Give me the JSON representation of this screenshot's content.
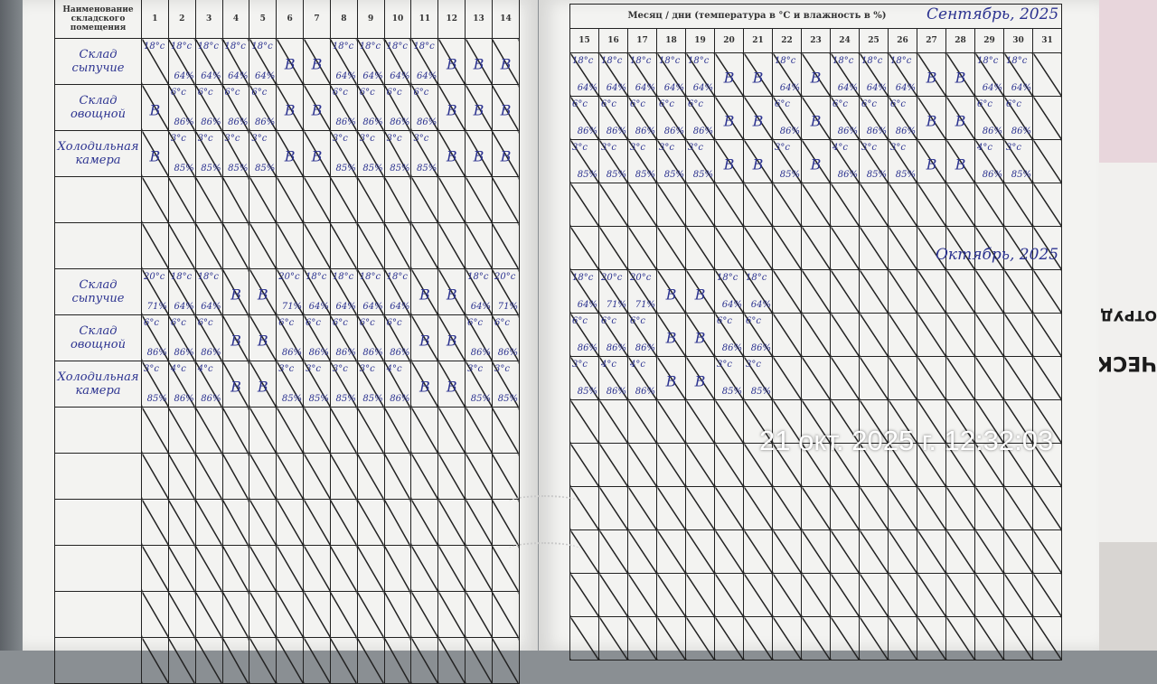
{
  "header": {
    "name_column": "Наименование складского помещения",
    "title": "Месяц / дни (температура в °С и влажность в %)",
    "days_left": [
      "1",
      "2",
      "3",
      "4",
      "5",
      "6",
      "7",
      "8",
      "9",
      "10",
      "11",
      "12",
      "13",
      "14"
    ],
    "days_right": [
      "15",
      "16",
      "17",
      "18",
      "19",
      "20",
      "21",
      "22",
      "23",
      "24",
      "25",
      "26",
      "27",
      "28",
      "29",
      "30",
      "31"
    ]
  },
  "timestamp": "21 окт. 2025 г. 12:32:03",
  "side_stamp": [
    "ЧЕСКИ",
    "ОТРУДН"
  ],
  "september": {
    "label": "Сентябрь, 2025",
    "rows": [
      {
        "name": "Склад сыпучие",
        "left": [
          [
            "18°c",
            ""
          ],
          [
            "18°c",
            "64%"
          ],
          [
            "18°c",
            "64%"
          ],
          [
            "18°c",
            "64%"
          ],
          [
            "18°c",
            "64%"
          ],
          "B",
          "B",
          [
            "18°c",
            "64%"
          ],
          [
            "18°c",
            "64%"
          ],
          [
            "18°c",
            "64%"
          ],
          [
            "18°c",
            "64%"
          ],
          "B",
          "B",
          "B"
        ],
        "right": [
          [
            "18°c",
            "64%"
          ],
          [
            "18°c",
            "64%"
          ],
          [
            "18°c",
            "64%"
          ],
          [
            "18°c",
            "64%"
          ],
          [
            "18°c",
            "64%"
          ],
          "B",
          "B",
          [
            "18°c",
            "64%"
          ],
          "B",
          [
            "18°c",
            "64%"
          ],
          [
            "18°c",
            "64%"
          ],
          [
            "18°c",
            "64%"
          ],
          "B",
          "B",
          [
            "18°c",
            "64%"
          ],
          [
            "18°c",
            "64%"
          ],
          ""
        ]
      },
      {
        "name": "Склад овощной",
        "left": [
          "B",
          [
            "6°c",
            "86%"
          ],
          [
            "6°c",
            "86%"
          ],
          [
            "6°c",
            "86%"
          ],
          [
            "6°c",
            "86%"
          ],
          "B",
          "B",
          [
            "6°c",
            "86%"
          ],
          [
            "6°c",
            "86%"
          ],
          [
            "6°c",
            "86%"
          ],
          [
            "6°c",
            "86%"
          ],
          "B",
          "B",
          "B"
        ],
        "right": [
          [
            "6°c",
            "86%"
          ],
          [
            "6°c",
            "86%"
          ],
          [
            "6°c",
            "86%"
          ],
          [
            "6°c",
            "86%"
          ],
          [
            "6°c",
            "86%"
          ],
          "B",
          "B",
          [
            "6°c",
            "86%"
          ],
          "B",
          [
            "6°c",
            "86%"
          ],
          [
            "6°c",
            "86%"
          ],
          [
            "6°c",
            "86%"
          ],
          "B",
          "B",
          [
            "6°c",
            "86%"
          ],
          [
            "6°c",
            "86%"
          ],
          ""
        ]
      },
      {
        "name": "Холодильная камера",
        "left": [
          "B",
          [
            "3°c",
            "85%"
          ],
          [
            "3°c",
            "85%"
          ],
          [
            "3°c",
            "85%"
          ],
          [
            "3°c",
            "85%"
          ],
          "B",
          "B",
          [
            "3°c",
            "85%"
          ],
          [
            "3°c",
            "85%"
          ],
          [
            "3°c",
            "85%"
          ],
          [
            "3°c",
            "85%"
          ],
          "B",
          "B",
          "B"
        ],
        "right": [
          [
            "3°c",
            "85%"
          ],
          [
            "3°c",
            "85%"
          ],
          [
            "3°c",
            "85%"
          ],
          [
            "3°c",
            "85%"
          ],
          [
            "3°c",
            "85%"
          ],
          "B",
          "B",
          [
            "3°c",
            "85%"
          ],
          "B",
          [
            "4°c",
            "86%"
          ],
          [
            "3°c",
            "85%"
          ],
          [
            "3°c",
            "85%"
          ],
          "B",
          "B",
          [
            "4°c",
            "86%"
          ],
          [
            "3°c",
            "85%"
          ],
          ""
        ]
      }
    ]
  },
  "october": {
    "label": "Октябрь, 2025",
    "rows": [
      {
        "name": "Склад сыпучие",
        "left": [
          [
            "20°c",
            "71%"
          ],
          [
            "18°c",
            "64%"
          ],
          [
            "18°c",
            "64%"
          ],
          "B",
          "B",
          [
            "20°c",
            "71%"
          ],
          [
            "18°c",
            "64%"
          ],
          [
            "18°c",
            "64%"
          ],
          [
            "18°c",
            "64%"
          ],
          [
            "18°c",
            "64%"
          ],
          "B",
          "B",
          [
            "18°c",
            "64%"
          ],
          [
            "20°c",
            "71%"
          ]
        ],
        "right": [
          [
            "18°c",
            "64%"
          ],
          [
            "20°c",
            "71%"
          ],
          [
            "20°c",
            "71%"
          ],
          "B",
          "B",
          [
            "18°c",
            "64%"
          ],
          [
            "18°c",
            "64%"
          ],
          "",
          "",
          "",
          "",
          "",
          "",
          "",
          "",
          "",
          ""
        ]
      },
      {
        "name": "Склад овощной",
        "left": [
          [
            "6°c",
            "86%"
          ],
          [
            "6°c",
            "86%"
          ],
          [
            "6°c",
            "86%"
          ],
          "B",
          "B",
          [
            "6°c",
            "86%"
          ],
          [
            "6°c",
            "86%"
          ],
          [
            "6°c",
            "86%"
          ],
          [
            "6°c",
            "86%"
          ],
          [
            "6°c",
            "86%"
          ],
          "B",
          "B",
          [
            "6°c",
            "86%"
          ],
          [
            "6°c",
            "86%"
          ]
        ],
        "right": [
          [
            "6°c",
            "86%"
          ],
          [
            "6°c",
            "86%"
          ],
          [
            "6°c",
            "86%"
          ],
          "B",
          "B",
          [
            "6°c",
            "86%"
          ],
          [
            "6°c",
            "86%"
          ],
          "",
          "",
          "",
          "",
          "",
          "",
          "",
          "",
          "",
          ""
        ]
      },
      {
        "name": "Холодильная камера",
        "left": [
          [
            "3°c",
            "85%"
          ],
          [
            "4°c",
            "86%"
          ],
          [
            "4°c",
            "86%"
          ],
          "B",
          "B",
          [
            "3°c",
            "85%"
          ],
          [
            "3°c",
            "85%"
          ],
          [
            "3°c",
            "85%"
          ],
          [
            "3°c",
            "85%"
          ],
          [
            "4°c",
            "86%"
          ],
          "B",
          "B",
          [
            "3°c",
            "85%"
          ],
          [
            "3°c",
            "85%"
          ]
        ],
        "right": [
          [
            "3°c",
            "85%"
          ],
          [
            "4°c",
            "86%"
          ],
          [
            "4°c",
            "86%"
          ],
          "B",
          "B",
          [
            "3°c",
            "85%"
          ],
          [
            "3°c",
            "85%"
          ],
          "",
          "",
          "",
          "",
          "",
          "",
          "",
          "",
          "",
          ""
        ]
      }
    ]
  }
}
